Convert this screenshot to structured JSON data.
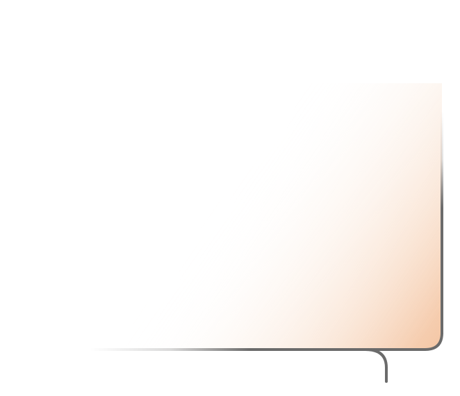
{
  "canvas": {
    "background": "#ffffff"
  },
  "panel": {
    "gradient_start_color": "#ffffff",
    "gradient_end_color": "#f4c6a4",
    "border_color": "#6b6b6b"
  },
  "connector": {
    "color": "#6b6b6b"
  }
}
